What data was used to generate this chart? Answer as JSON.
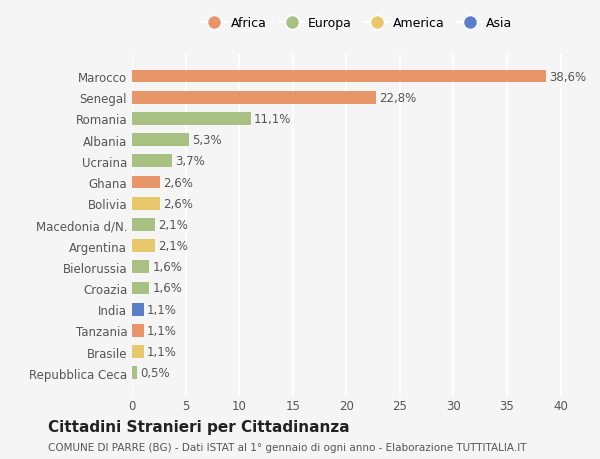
{
  "categories": [
    "Repubblica Ceca",
    "Brasile",
    "Tanzania",
    "India",
    "Croazia",
    "Bielorussia",
    "Argentina",
    "Macedonia d/N.",
    "Bolivia",
    "Ghana",
    "Ucraina",
    "Albania",
    "Romania",
    "Senegal",
    "Marocco"
  ],
  "values": [
    0.5,
    1.1,
    1.1,
    1.1,
    1.6,
    1.6,
    2.1,
    2.1,
    2.6,
    2.6,
    3.7,
    5.3,
    11.1,
    22.8,
    38.6
  ],
  "labels": [
    "0,5%",
    "1,1%",
    "1,1%",
    "1,1%",
    "1,6%",
    "1,6%",
    "2,1%",
    "2,1%",
    "2,6%",
    "2,6%",
    "3,7%",
    "5,3%",
    "11,1%",
    "22,8%",
    "38,6%"
  ],
  "colors": [
    "#a8c082",
    "#e8c86a",
    "#e8956a",
    "#5b7ec9",
    "#a8c082",
    "#a8c082",
    "#e8c86a",
    "#a8c082",
    "#e8c86a",
    "#e8956a",
    "#a8c082",
    "#a8c082",
    "#a8c082",
    "#e8956a",
    "#e8956a"
  ],
  "legend_labels": [
    "Africa",
    "Europa",
    "America",
    "Asia"
  ],
  "legend_colors": [
    "#e8956a",
    "#a8c082",
    "#e8c86a",
    "#5b7ec9"
  ],
  "title": "Cittadini Stranieri per Cittadinanza",
  "subtitle": "COMUNE DI PARRE (BG) - Dati ISTAT al 1° gennaio di ogni anno - Elaborazione TUTTITALIA.IT",
  "xlim": [
    0,
    42
  ],
  "xticks": [
    0,
    5,
    10,
    15,
    20,
    25,
    30,
    35,
    40
  ],
  "bg_color": "#f5f5f5",
  "bar_height": 0.6,
  "grid_color": "#ffffff",
  "label_fontsize": 8.5,
  "tick_fontsize": 8.5,
  "title_fontsize": 11,
  "subtitle_fontsize": 7.5
}
